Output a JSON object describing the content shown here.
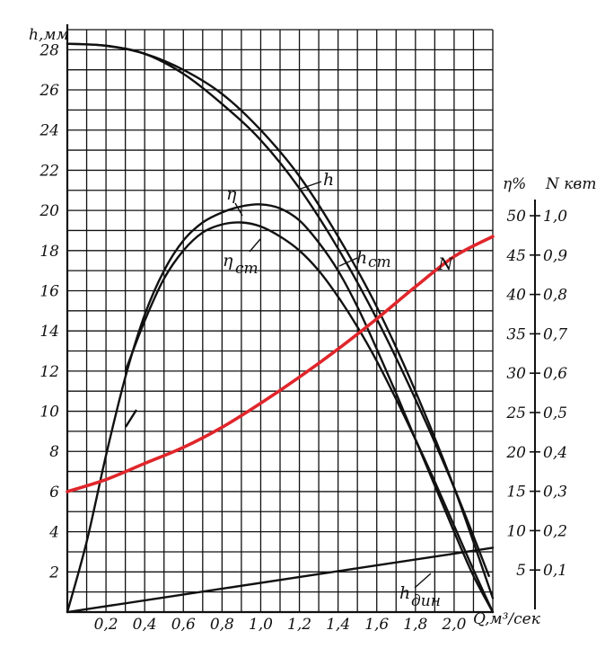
{
  "chart_data": {
    "type": "line",
    "x_axis": {
      "label": "Q,м³/сек",
      "range": [
        0,
        2.2
      ],
      "ticks": [
        "0,2",
        "0,4",
        "0,6",
        "0,8",
        "1,0",
        "1,2",
        "1,4",
        "1,6",
        "1,8",
        "2,0"
      ],
      "tick_values": [
        0.2,
        0.4,
        0.6,
        0.8,
        1.0,
        1.2,
        1.4,
        1.6,
        1.8,
        2.0
      ]
    },
    "y_axis_left": {
      "label": "h,мм",
      "range": [
        0,
        29
      ],
      "ticks": [
        "2",
        "4",
        "6",
        "8",
        "10",
        "12",
        "14",
        "16",
        "18",
        "20",
        "22",
        "24",
        "26",
        "28"
      ],
      "tick_values": [
        2,
        4,
        6,
        8,
        10,
        12,
        14,
        16,
        18,
        20,
        22,
        24,
        26,
        28
      ]
    },
    "y_axis_right_eta": {
      "label": "η%",
      "ticks": [
        "5",
        "10",
        "15",
        "20",
        "25",
        "30",
        "35",
        "40",
        "45",
        "50"
      ],
      "tick_values": [
        5,
        10,
        15,
        20,
        25,
        30,
        35,
        40,
        45,
        50
      ]
    },
    "y_axis_right_n": {
      "label": "N квт",
      "ticks": [
        "0,1",
        "0,2",
        "0,3",
        "0,4",
        "0,5",
        "0,6",
        "0,7",
        "0,8",
        "0,9",
        "1,0"
      ],
      "tick_values": [
        0.1,
        0.2,
        0.3,
        0.4,
        0.5,
        0.6,
        0.7,
        0.8,
        0.9,
        1.0
      ]
    },
    "grid": true,
    "series": [
      {
        "name": "h",
        "axis": "h",
        "color": "#111111",
        "x": [
          0,
          0.2,
          0.4,
          0.6,
          0.8,
          1.0,
          1.2,
          1.4,
          1.6,
          1.8,
          2.0,
          2.2
        ],
        "y": [
          28.3,
          28.2,
          27.8,
          27.0,
          25.8,
          24.0,
          21.7,
          18.7,
          15.2,
          11.0,
          6.2,
          0.7
        ]
      },
      {
        "name": "h_cm",
        "axis": "h",
        "color": "#111111",
        "x": [
          0,
          0.2,
          0.4,
          0.6,
          0.8,
          1.0,
          1.2,
          1.4,
          1.6,
          1.8,
          2.0,
          2.18
        ],
        "y": [
          28.3,
          28.2,
          27.8,
          26.8,
          25.3,
          23.5,
          21.1,
          18.1,
          14.6,
          10.6,
          6.2,
          1.8
        ]
      },
      {
        "name": "η",
        "axis": "h",
        "color": "#111111",
        "x": [
          0,
          0.1,
          0.2,
          0.3,
          0.4,
          0.5,
          0.6,
          0.7,
          0.8,
          0.9,
          1.0,
          1.1,
          1.2,
          1.3,
          1.4,
          1.5,
          1.6,
          1.7,
          1.8,
          1.9,
          2.0,
          2.1,
          2.2
        ],
        "y": [
          0,
          3.5,
          7.8,
          11.7,
          14.8,
          17.0,
          18.5,
          19.4,
          19.9,
          20.2,
          20.3,
          20.1,
          19.5,
          18.4,
          17.0,
          15.2,
          13.1,
          10.9,
          8.6,
          6.3,
          4.0,
          1.8,
          0
        ]
      },
      {
        "name": "η_cm",
        "axis": "h",
        "color": "#111111",
        "x": [
          0.3,
          0.4,
          0.5,
          0.6,
          0.7,
          0.8,
          0.9,
          1.0,
          1.1,
          1.2,
          1.3,
          1.4,
          1.5,
          1.6,
          1.7,
          1.8,
          1.9,
          2.0,
          2.1,
          2.2
        ],
        "y": [
          12.0,
          14.5,
          16.6,
          18.0,
          18.9,
          19.3,
          19.4,
          19.2,
          18.7,
          18.0,
          17.0,
          15.7,
          14.2,
          12.5,
          10.6,
          8.6,
          6.5,
          4.3,
          2.1,
          0
        ]
      },
      {
        "name": "N",
        "axis": "h",
        "color": "#e0262b",
        "x": [
          0,
          0.2,
          0.4,
          0.6,
          0.8,
          1.0,
          1.2,
          1.4,
          1.6,
          1.8,
          2.0,
          2.2
        ],
        "y": [
          6.0,
          6.6,
          7.4,
          8.2,
          9.2,
          10.4,
          11.7,
          13.1,
          14.6,
          16.2,
          17.7,
          18.7
        ]
      },
      {
        "name": "h_дин",
        "axis": "h",
        "color": "#111111",
        "x": [
          0,
          2.2
        ],
        "y": [
          0,
          3.2
        ]
      }
    ],
    "labels": {
      "h": "h",
      "h_cm": "h",
      "h_cm_sub": "cm",
      "eta": "η",
      "eta_cm": "η",
      "eta_cm_sub": "cm",
      "N": "N",
      "h_din": "h",
      "h_din_sub": "дин"
    }
  }
}
